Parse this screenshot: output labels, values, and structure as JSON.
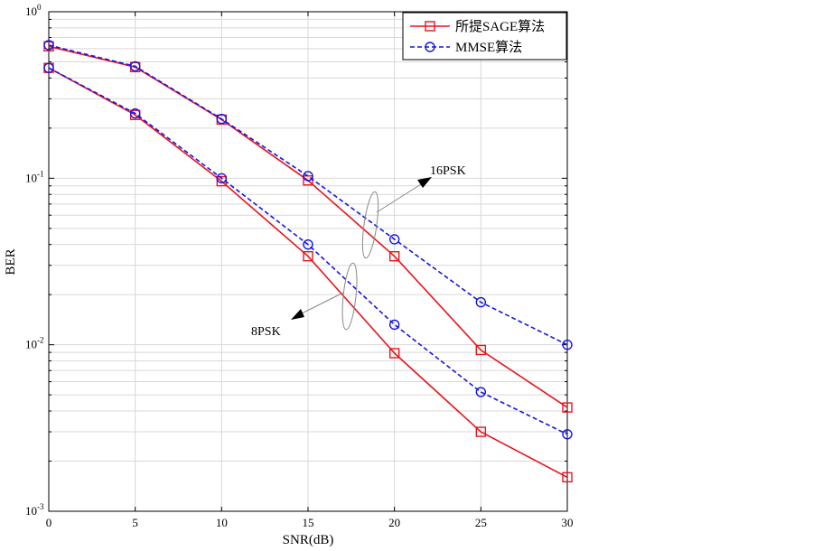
{
  "chart_data": {
    "type": "line",
    "xlabel": "SNR(dB)",
    "ylabel": "BER",
    "x_ticks": [
      0,
      5,
      10,
      15,
      20,
      25,
      30
    ],
    "xlim": [
      0,
      30
    ],
    "ylim": [
      0.001,
      1
    ],
    "y_scale": "log",
    "y_tick_labels": [
      {
        "base": "10",
        "exp": "0"
      },
      {
        "base": "10",
        "exp": "-1"
      },
      {
        "base": "10",
        "exp": "-2"
      },
      {
        "base": "10",
        "exp": "-3"
      }
    ],
    "grid": true,
    "legend_position": "top-right",
    "legend": [
      {
        "label": "所提SAGE算法",
        "color": "#e8141c",
        "dash": "solid",
        "marker": "square"
      },
      {
        "label": "MMSE算法",
        "color": "#1414e6",
        "dash": "dashed",
        "marker": "circle"
      }
    ],
    "x": [
      0,
      5,
      10,
      15,
      20,
      25,
      30
    ],
    "series": [
      {
        "group": "16PSK",
        "legend_index": 0,
        "values": [
          0.62,
          0.465,
          0.225,
          0.097,
          0.034,
          0.0093,
          0.0042
        ]
      },
      {
        "group": "16PSK",
        "legend_index": 1,
        "values": [
          0.63,
          0.47,
          0.227,
          0.103,
          0.043,
          0.018,
          0.01
        ]
      },
      {
        "group": "8PSK",
        "legend_index": 0,
        "values": [
          0.46,
          0.24,
          0.096,
          0.034,
          0.0089,
          0.003,
          0.0016
        ]
      },
      {
        "group": "8PSK",
        "legend_index": 1,
        "values": [
          0.46,
          0.245,
          0.1,
          0.04,
          0.0132,
          0.0052,
          0.0029
        ]
      }
    ],
    "annotations": [
      {
        "text": "16PSK"
      },
      {
        "text": "8PSK"
      }
    ]
  }
}
